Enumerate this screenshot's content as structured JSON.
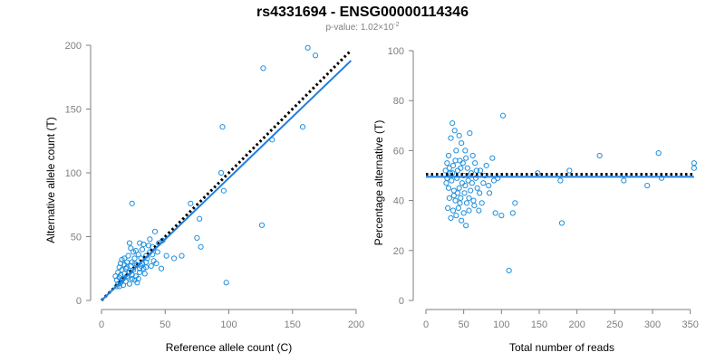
{
  "figure": {
    "title": "rs4331694 - ENSG00000114346",
    "subtitle_prefix": "p-value: 1.02×10",
    "subtitle_exponent": "-2"
  },
  "colors": {
    "points": "#1f8fdc",
    "fit_line": "#1f7fe0",
    "reference_line": "#000000",
    "axis": "#7f7f7f"
  },
  "chart_data": [
    {
      "type": "scatter",
      "title": "",
      "xlabel": "Reference allele count (C)",
      "ylabel": "Alternative allele count (T)",
      "xlim": [
        0,
        200
      ],
      "ylim": [
        0,
        200
      ],
      "xticks": [
        0,
        50,
        100,
        150,
        200
      ],
      "yticks": [
        0,
        50,
        100,
        150,
        200
      ],
      "lines": [
        {
          "role": "reference",
          "style": "dotted",
          "x": [
            0,
            195
          ],
          "y": [
            0,
            195
          ]
        },
        {
          "role": "fit",
          "style": "solid",
          "x": [
            0,
            196
          ],
          "y": [
            0,
            188
          ]
        }
      ],
      "points": [
        [
          162,
          198
        ],
        [
          168,
          192
        ],
        [
          127,
          182
        ],
        [
          95,
          136
        ],
        [
          158,
          136
        ],
        [
          134,
          126
        ],
        [
          94,
          100
        ],
        [
          96,
          86
        ],
        [
          24,
          76
        ],
        [
          70,
          76
        ],
        [
          77,
          64
        ],
        [
          75,
          49
        ],
        [
          78,
          42
        ],
        [
          63,
          35
        ],
        [
          51,
          35
        ],
        [
          57,
          33
        ],
        [
          48,
          47
        ],
        [
          45,
          45
        ],
        [
          42,
          54
        ],
        [
          126,
          59
        ],
        [
          98,
          14
        ],
        [
          47,
          25
        ],
        [
          40,
          42
        ],
        [
          38,
          38
        ],
        [
          35,
          35
        ],
        [
          32,
          40
        ],
        [
          30,
          45
        ],
        [
          22,
          45
        ],
        [
          35,
          30
        ],
        [
          33,
          25
        ],
        [
          30,
          22
        ],
        [
          28,
          28
        ],
        [
          26,
          33
        ],
        [
          25,
          38
        ],
        [
          24,
          30
        ],
        [
          23,
          27
        ],
        [
          22,
          22
        ],
        [
          21,
          35
        ],
        [
          20,
          30
        ],
        [
          20,
          19
        ],
        [
          19,
          25
        ],
        [
          18,
          28
        ],
        [
          18,
          21
        ],
        [
          17,
          17
        ],
        [
          16,
          32
        ],
        [
          16,
          24
        ],
        [
          15,
          20
        ],
        [
          15,
          14
        ],
        [
          14,
          26
        ],
        [
          14,
          18
        ],
        [
          13,
          22
        ],
        [
          13,
          13
        ],
        [
          12,
          16
        ],
        [
          12,
          11
        ],
        [
          11,
          19
        ],
        [
          27,
          19
        ],
        [
          29,
          17
        ],
        [
          31,
          27
        ],
        [
          34,
          21
        ],
        [
          36,
          33
        ],
        [
          39,
          27
        ],
        [
          41,
          31
        ],
        [
          25,
          24
        ],
        [
          24,
          20
        ],
        [
          21,
          18
        ],
        [
          19,
          15
        ],
        [
          17,
          12
        ],
        [
          22,
          13
        ],
        [
          26,
          16
        ],
        [
          28,
          14
        ],
        [
          30,
          25
        ],
        [
          32,
          29
        ],
        [
          37,
          43
        ],
        [
          44,
          38
        ],
        [
          43,
          29
        ],
        [
          27,
          39
        ],
        [
          29,
          36
        ],
        [
          31,
          33
        ],
        [
          23,
          41
        ],
        [
          18,
          33
        ],
        [
          15,
          29
        ],
        [
          33,
          44
        ],
        [
          38,
          48
        ],
        [
          40,
          36
        ],
        [
          20,
          26
        ],
        [
          16,
          16
        ],
        [
          24,
          17
        ],
        [
          35,
          26
        ],
        [
          26,
          29
        ],
        [
          14,
          11
        ]
      ]
    },
    {
      "type": "scatter",
      "title": "",
      "xlabel": "Total number of reads",
      "ylabel": "Percentage alternative (T)",
      "xlim": [
        0,
        360
      ],
      "ylim": [
        0,
        100
      ],
      "xticks": [
        0,
        50,
        100,
        150,
        200,
        250,
        300,
        350
      ],
      "yticks": [
        0,
        20,
        40,
        60,
        80,
        100
      ],
      "lines": [
        {
          "role": "reference",
          "style": "dotted",
          "x": [
            0,
            355
          ],
          "y": [
            50.5,
            50.5
          ]
        },
        {
          "role": "fit",
          "style": "solid",
          "x": [
            0,
            355
          ],
          "y": [
            49.5,
            49.5
          ]
        }
      ],
      "points": [
        [
          102,
          74
        ],
        [
          35,
          71
        ],
        [
          38,
          68
        ],
        [
          44,
          66
        ],
        [
          58,
          67
        ],
        [
          33,
          65
        ],
        [
          47,
          63
        ],
        [
          52,
          60
        ],
        [
          30,
          58
        ],
        [
          40,
          60
        ],
        [
          62,
          58
        ],
        [
          88,
          57
        ],
        [
          230,
          58
        ],
        [
          308,
          59
        ],
        [
          28,
          55
        ],
        [
          36,
          54
        ],
        [
          45,
          56
        ],
        [
          55,
          53
        ],
        [
          65,
          55
        ],
        [
          80,
          54
        ],
        [
          355,
          55
        ],
        [
          355,
          53
        ],
        [
          26,
          52
        ],
        [
          32,
          51
        ],
        [
          42,
          52
        ],
        [
          50,
          50
        ],
        [
          60,
          51
        ],
        [
          72,
          52
        ],
        [
          148,
          51
        ],
        [
          190,
          52
        ],
        [
          28,
          49
        ],
        [
          34,
          48
        ],
        [
          41,
          49
        ],
        [
          48,
          47
        ],
        [
          56,
          48
        ],
        [
          66,
          49
        ],
        [
          76,
          47
        ],
        [
          90,
          48
        ],
        [
          178,
          48
        ],
        [
          262,
          48
        ],
        [
          293,
          46
        ],
        [
          312,
          49
        ],
        [
          30,
          45
        ],
        [
          37,
          44
        ],
        [
          44,
          45
        ],
        [
          51,
          43
        ],
        [
          59,
          44
        ],
        [
          68,
          45
        ],
        [
          84,
          43
        ],
        [
          31,
          41
        ],
        [
          39,
          40
        ],
        [
          46,
          41
        ],
        [
          54,
          39
        ],
        [
          63,
          40
        ],
        [
          74,
          39
        ],
        [
          118,
          39
        ],
        [
          29,
          37
        ],
        [
          36,
          36
        ],
        [
          43,
          37
        ],
        [
          50,
          35
        ],
        [
          57,
          36
        ],
        [
          70,
          36
        ],
        [
          92,
          35
        ],
        [
          100,
          34
        ],
        [
          115,
          35
        ],
        [
          33,
          33
        ],
        [
          40,
          34
        ],
        [
          47,
          32
        ],
        [
          53,
          30
        ],
        [
          180,
          31
        ],
        [
          110,
          12
        ],
        [
          27,
          47
        ],
        [
          35,
          51
        ],
        [
          39,
          56
        ],
        [
          46,
          53
        ],
        [
          53,
          57
        ],
        [
          61,
          47
        ],
        [
          67,
          52
        ],
        [
          71,
          43
        ],
        [
          78,
          50
        ],
        [
          83,
          46
        ],
        [
          95,
          49
        ],
        [
          42,
          43
        ],
        [
          49,
          55
        ],
        [
          57,
          41
        ],
        [
          64,
          38
        ],
        [
          31,
          53
        ],
        [
          37,
          42
        ],
        [
          45,
          39
        ],
        [
          52,
          46
        ]
      ]
    }
  ]
}
